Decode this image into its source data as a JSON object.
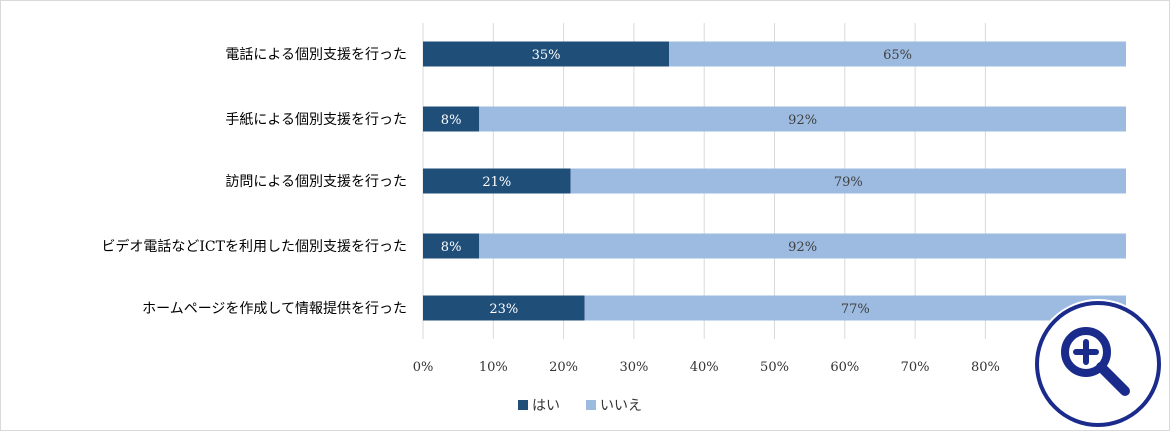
{
  "chart_data": {
    "type": "bar",
    "orientation": "horizontal",
    "stacked": true,
    "categories": [
      "電話による個別支援を行った",
      "手紙による個別支援を行った",
      "訪問による個別支援を行った",
      "ビデオ電話などICTを利用した個別支援を行った",
      "ホームページを作成して情報提供を行った"
    ],
    "series": [
      {
        "name": "はい",
        "values": [
          35,
          8,
          21,
          8,
          23
        ],
        "labels": [
          "35%",
          "8%",
          "21%",
          "8%",
          "23%"
        ],
        "color": "#1f4e79"
      },
      {
        "name": "いいえ",
        "values": [
          65,
          92,
          79,
          92,
          77
        ],
        "labels": [
          "65%",
          "92%",
          "79%",
          "92%",
          "77%"
        ],
        "color": "#9dbbe0"
      }
    ],
    "xlim": [
      0,
      100
    ],
    "xticks": [
      0,
      10,
      20,
      30,
      40,
      50,
      60,
      70,
      80
    ],
    "xtick_labels": [
      "0%",
      "10%",
      "20%",
      "30%",
      "40%",
      "50%",
      "60%",
      "70%",
      "80%"
    ],
    "grid": true,
    "legend_position": "bottom",
    "title": "",
    "xlabel": "",
    "ylabel": ""
  },
  "zoom_button": {
    "icon": "zoom-in-icon",
    "color": "#1a2b8c"
  }
}
